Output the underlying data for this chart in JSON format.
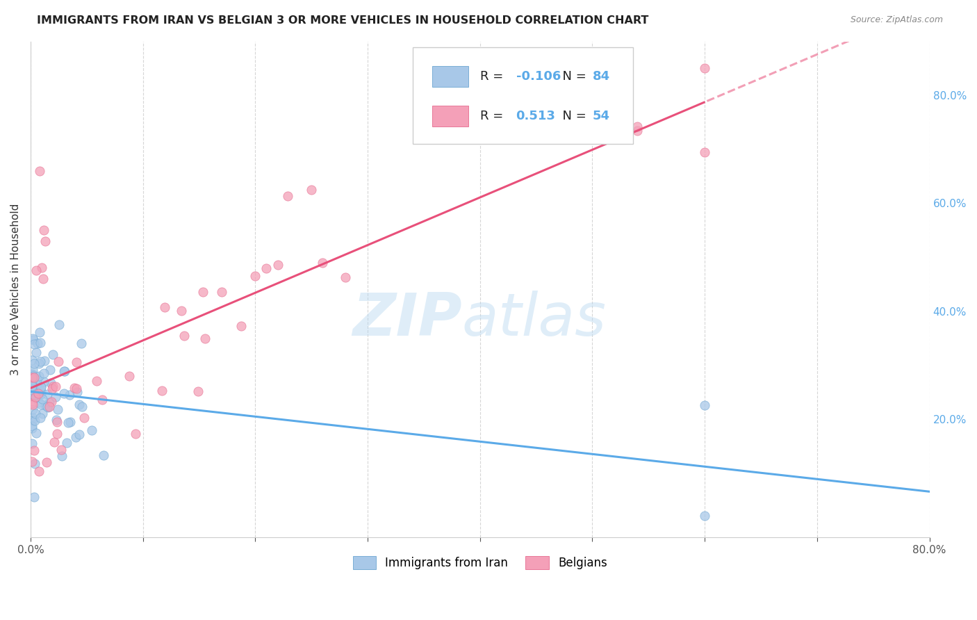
{
  "title": "IMMIGRANTS FROM IRAN VS BELGIAN 3 OR MORE VEHICLES IN HOUSEHOLD CORRELATION CHART",
  "source": "Source: ZipAtlas.com",
  "ylabel": "3 or more Vehicles in Household",
  "legend_label1": "Immigrants from Iran",
  "legend_label2": "Belgians",
  "r1": "-0.106",
  "n1": 84,
  "r2": "0.513",
  "n2": 54,
  "color_iran": "#a8c8e8",
  "color_iran_edge": "#7aaed6",
  "color_belgian": "#f4a0b8",
  "color_belgian_edge": "#e87898",
  "color_iran_line": "#5baae8",
  "color_belgian_line": "#e8507a",
  "xmin": 0.0,
  "xmax": 0.8,
  "ymin": -0.02,
  "ymax": 0.9,
  "ytick_vals": [
    0.2,
    0.4,
    0.6,
    0.8
  ],
  "ytick_labels": [
    "20.0%",
    "40.0%",
    "60.0%",
    "80.0%"
  ],
  "xtick_vals": [
    0.0,
    0.1,
    0.2,
    0.3,
    0.4,
    0.5,
    0.6,
    0.7,
    0.8
  ],
  "xtick_labels": [
    "0.0%",
    "",
    "",
    "",
    "",
    "",
    "",
    "",
    "80.0%"
  ],
  "background_color": "#ffffff",
  "grid_color": "#cccccc",
  "watermark_zip": "ZIP",
  "watermark_atlas": "atlas"
}
